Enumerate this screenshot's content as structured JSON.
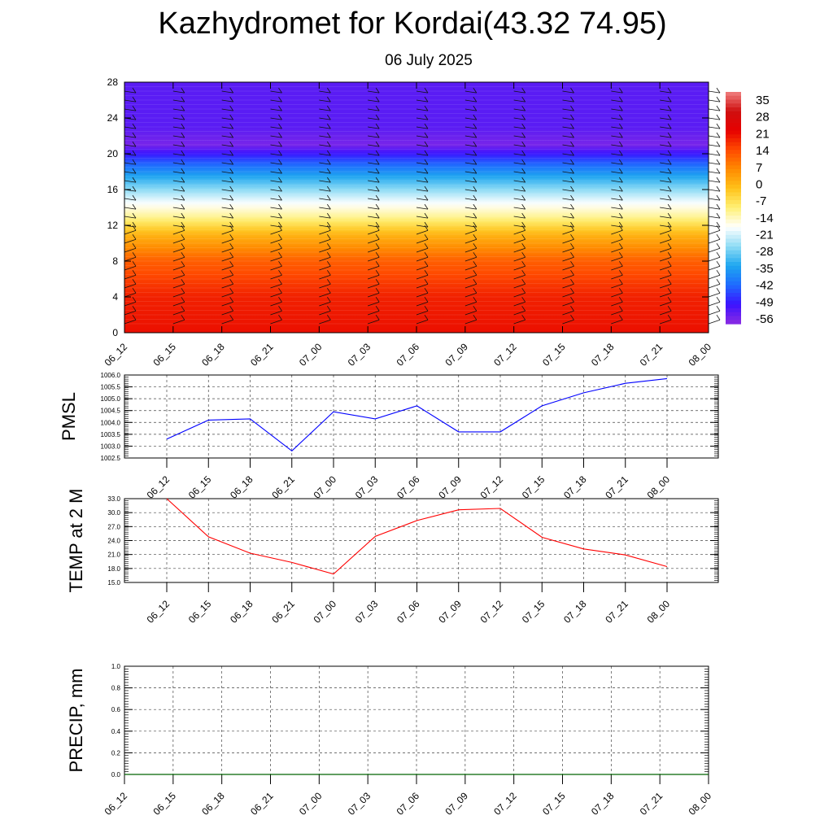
{
  "title": "Kazhydromet for Kordai(43.32 74.95)",
  "subtitle": "06 July 2025",
  "time_labels": [
    "06_12",
    "06_15",
    "06_18",
    "06_21",
    "07_00",
    "07_03",
    "07_06",
    "07_09",
    "07_12",
    "07_15",
    "07_18",
    "07_21",
    "08_00"
  ],
  "chart_data": [
    {
      "type": "heatmap",
      "name": "cross-section",
      "x": [
        "06_12",
        "06_15",
        "06_18",
        "06_21",
        "07_00",
        "07_03",
        "07_06",
        "07_09",
        "07_12",
        "07_15",
        "07_18",
        "07_21",
        "08_00"
      ],
      "y_ticks": [
        0,
        4,
        8,
        12,
        16,
        20,
        24,
        28
      ],
      "ylim": [
        0,
        28
      ],
      "colorbar_labels": [
        "35",
        "28",
        "21",
        "14",
        "7",
        "0",
        "-7",
        "-14",
        "-21",
        "-28",
        "-35",
        "-42",
        "-49",
        "-56"
      ],
      "colorbar_range": [
        -60,
        38
      ],
      "colorscale": [
        "#8b2be2",
        "#3b12ff",
        "#1e6bff",
        "#1ea7ef",
        "#8fdcf5",
        "#ffffff",
        "#fff176",
        "#ffc21a",
        "#ff8a00",
        "#ff4a00",
        "#e60000",
        "#cf1010",
        "#f08080"
      ],
      "value_profile": [
        {
          "level": 0,
          "value": 20
        },
        {
          "level": 4,
          "value": 18
        },
        {
          "level": 8,
          "value": 11
        },
        {
          "level": 11,
          "value": -1
        },
        {
          "level": 13,
          "value": -13
        },
        {
          "level": 15,
          "value": -22
        },
        {
          "level": 17,
          "value": -33
        },
        {
          "level": 19,
          "value": -45
        },
        {
          "level": 21,
          "value": -58
        },
        {
          "level": 23,
          "value": -55
        },
        {
          "level": 28,
          "value": -55
        }
      ],
      "wind_barbs": true,
      "grid": false
    },
    {
      "type": "line",
      "ylabel": "PMSL",
      "x": [
        "06_12",
        "06_15",
        "06_18",
        "06_21",
        "07_00",
        "07_03",
        "07_06",
        "07_09",
        "07_12",
        "07_15",
        "07_18",
        "07_21",
        "08_00"
      ],
      "series": [
        {
          "values": [
            1003.3,
            1004.1,
            1004.15,
            1002.8,
            1004.45,
            1004.15,
            1004.7,
            1003.6,
            1003.6,
            1004.7,
            1005.25,
            1005.65,
            1005.85
          ]
        }
      ],
      "ylim": [
        1002.5,
        1006.0
      ],
      "yticks": [
        "1002.5",
        "1003.0",
        "1003.5",
        "1004.0",
        "1004.5",
        "1005.0",
        "1005.5",
        "1006.0"
      ],
      "color": "#0000ff",
      "grid": true
    },
    {
      "type": "line",
      "ylabel": "TEMP at 2 M",
      "x": [
        "06_12",
        "06_15",
        "06_18",
        "06_21",
        "07_00",
        "07_03",
        "07_06",
        "07_09",
        "07_12",
        "07_15",
        "07_18",
        "07_21",
        "08_00"
      ],
      "series": [
        {
          "values": [
            33.0,
            24.8,
            21.3,
            19.3,
            16.8,
            24.9,
            28.3,
            30.6,
            30.9,
            24.7,
            22.2,
            20.9,
            18.4
          ]
        }
      ],
      "ylim": [
        15.0,
        33.0
      ],
      "yticks": [
        "15.0",
        "18.0",
        "21.0",
        "24.0",
        "27.0",
        "30.0",
        "33.0"
      ],
      "color": "#ff0000",
      "grid": true
    },
    {
      "type": "bar",
      "ylabel": "PRECIP, mm",
      "x": [
        "06_12",
        "06_15",
        "06_18",
        "06_21",
        "07_00",
        "07_03",
        "07_06",
        "07_09",
        "07_12",
        "07_15",
        "07_18",
        "07_21",
        "08_00"
      ],
      "values": [
        0,
        0,
        0,
        0,
        0,
        0,
        0,
        0,
        0,
        0,
        0,
        0,
        0
      ],
      "ylim": [
        0.0,
        1.0
      ],
      "yticks": [
        "0.0",
        "0.2",
        "0.4",
        "0.6",
        "0.8",
        "1.0"
      ],
      "color": "#006400",
      "grid": true
    }
  ]
}
